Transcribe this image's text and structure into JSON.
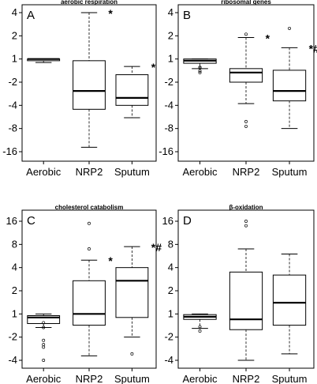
{
  "chart_data": [
    {
      "type": "box",
      "panel_label": "A",
      "title": "aerobic respiration",
      "yticks": [
        "4",
        "2",
        "1",
        "-2",
        "-4",
        "-8",
        "-16"
      ],
      "categories": [
        "Aerobic",
        "NRP2",
        "Sputum"
      ],
      "boxes": [
        {
          "whisker_low": 0.9,
          "q1": 0.95,
          "median": 1.0,
          "q3": 1.0,
          "whisker_high": 1.0,
          "outliers": [],
          "annotation": ""
        },
        {
          "whisker_low": -14,
          "q1": -4.5,
          "median": -2.6,
          "q3": 0.95,
          "whisker_high": 4,
          "outliers": [],
          "annotation": "*"
        },
        {
          "whisker_low": -5.8,
          "q1": -4.0,
          "median": -3.2,
          "q3": -1.6,
          "whisker_high": 0.8,
          "outliers": [],
          "annotation": "*"
        }
      ]
    },
    {
      "type": "box",
      "panel_label": "B",
      "title": "ribosomal genes",
      "yticks": [
        "4",
        "2",
        "1",
        "-2",
        "-4",
        "-8",
        "-16"
      ],
      "categories": [
        "Aerobic",
        "NRP2",
        "Sputum"
      ],
      "boxes": [
        {
          "whisker_low": 0.75,
          "q1": 0.88,
          "median": 0.95,
          "q3": 1.0,
          "whisker_high": 1.0,
          "outliers": [
            0.7,
            -1.3,
            -1.5,
            0.78
          ],
          "annotation": ""
        },
        {
          "whisker_low": -3.8,
          "q1": -2.0,
          "median": -1.5,
          "q3": 0.75,
          "whisker_high": 1.9,
          "outliers": [
            2.1,
            -6.5,
            -7.5
          ],
          "annotation": "*"
        },
        {
          "whisker_low": -8,
          "q1": -3.5,
          "median": -2.6,
          "q3": -1.4,
          "whisker_high": 1.4,
          "outliers": [
            2.5
          ],
          "annotation": "*#"
        }
      ]
    },
    {
      "type": "box",
      "panel_label": "C",
      "title": "cholesterol catabolism",
      "yticks": [
        "16",
        "8",
        "4",
        "2",
        "1",
        "-2",
        "-4"
      ],
      "categories": [
        "Aerobic",
        "NRP2",
        "Sputum"
      ],
      "boxes": [
        {
          "whisker_low": -1.5,
          "q1": 0.75,
          "median": 0.9,
          "q3": 0.95,
          "whisker_high": 1.0,
          "outliers": [
            -1.3,
            -1.5,
            -2.2,
            -2.5,
            -2.7,
            -4
          ],
          "annotation": ""
        },
        {
          "whisker_low": -3.5,
          "q1": -1.4,
          "median": 1.0,
          "q3": 2.7,
          "whisker_high": 5.0,
          "outliers": [
            7.0,
            15.0
          ],
          "annotation": "*"
        },
        {
          "whisker_low": -2.0,
          "q1": 0.9,
          "median": 2.7,
          "q3": 4.0,
          "whisker_high": 7.5,
          "outliers": [
            -3.3
          ],
          "annotation": "*#"
        }
      ]
    },
    {
      "type": "box",
      "panel_label": "D",
      "title": "β-oxidation",
      "yticks": [
        "16",
        "8",
        "4",
        "2",
        "1",
        "-2",
        "-4"
      ],
      "categories": [
        "Aerobic",
        "NRP2",
        "Sputum"
      ],
      "boxes": [
        {
          "whisker_low": 0.65,
          "q1": 0.85,
          "median": 0.92,
          "q3": 0.98,
          "whisker_high": 1.0,
          "outliers": [
            0.68,
            0.6
          ],
          "annotation": ""
        },
        {
          "whisker_low": -4.0,
          "q1": -1.6,
          "median": 0.85,
          "q3": 3.5,
          "whisker_high": 7.0,
          "outliers": [
            14,
            16
          ],
          "annotation": ""
        },
        {
          "whisker_low": -3.3,
          "q1": -1.4,
          "median": 1.4,
          "q3": 3.2,
          "whisker_high": 6.0,
          "outliers": [],
          "annotation": ""
        }
      ]
    }
  ]
}
